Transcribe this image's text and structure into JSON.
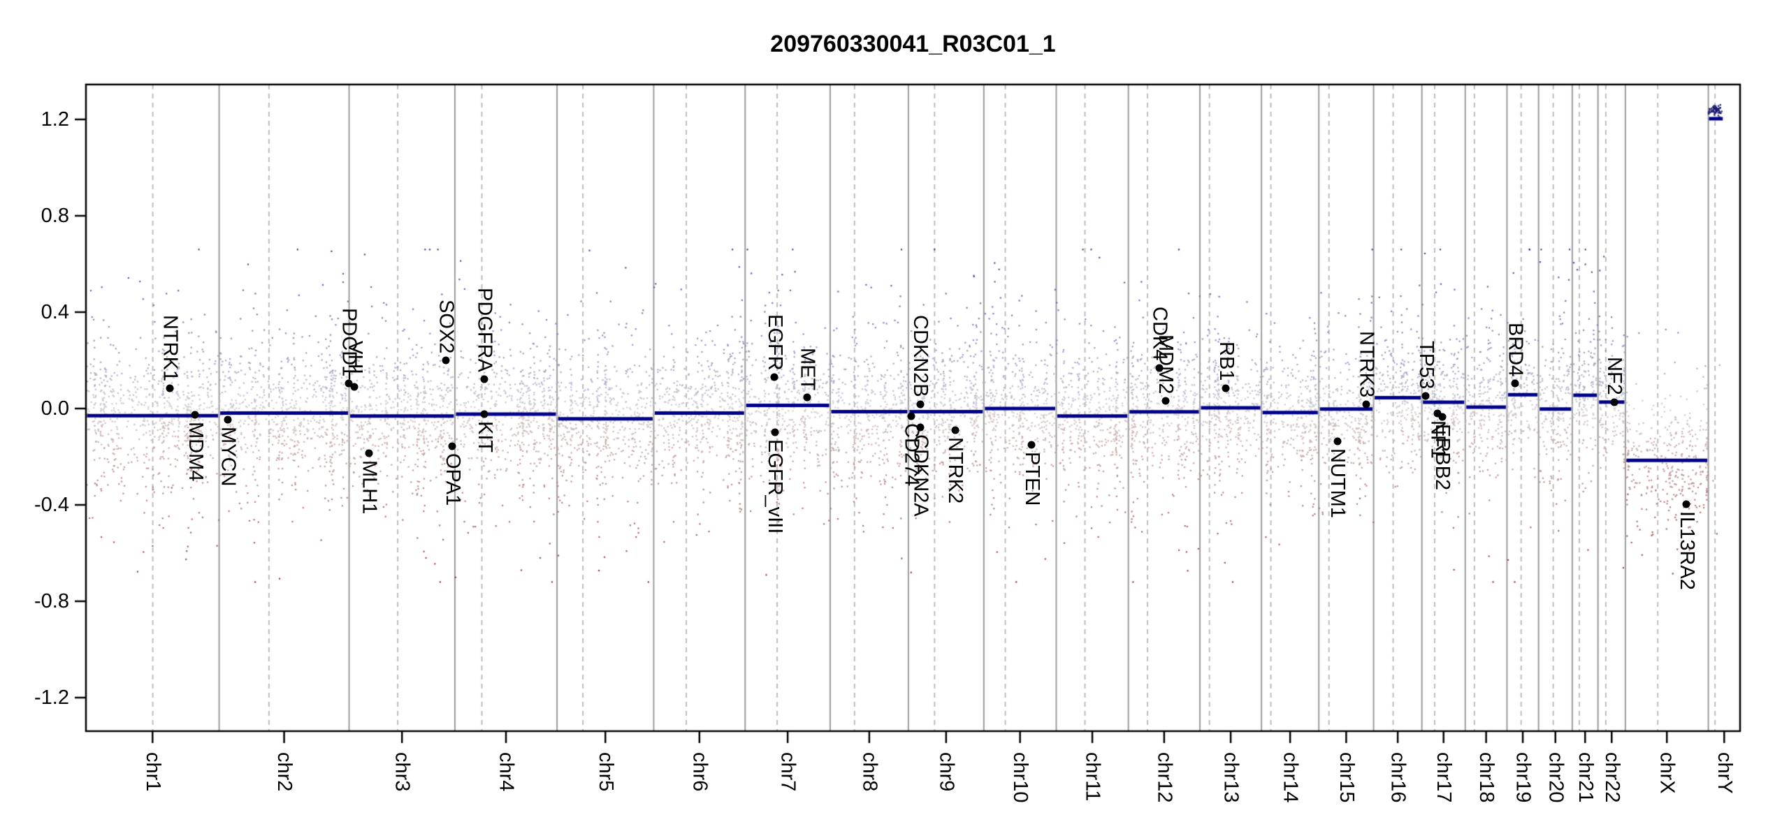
{
  "title": "209760330041_R03C01_1",
  "chart_data": {
    "type": "scatter",
    "title": "209760330041_R03C01_1",
    "xlabel": "",
    "ylabel": "",
    "ylim": [
      -1.34,
      1.34
    ],
    "ytick_values": [
      1.2,
      0.8,
      0.4,
      0.0,
      -0.4,
      -0.8,
      -1.2
    ],
    "ytick_labels": [
      "1.2",
      "0.8",
      "0.4",
      "0.0",
      "-0.4",
      "-0.8",
      "-1.2"
    ],
    "grid": "off",
    "legend": "none",
    "colors": {
      "segment": "#00008b",
      "chrom_boundary": "#9c9c9c",
      "centromere_dash": "#bdbdbd",
      "gene_marker": "#000000",
      "point_low_pos": "#cacad4",
      "point_high_pos": "#14146e",
      "point_low_neg": "#d4caca",
      "point_high_neg": "#781e1e",
      "box": "#000000"
    },
    "chromosomes": [
      {
        "name": "chr1",
        "length_mb": 249.25,
        "centromere_mb": 125.0,
        "segment_value": -0.03
      },
      {
        "name": "chr2",
        "length_mb": 243.2,
        "centromere_mb": 93.3,
        "segment_value": -0.019
      },
      {
        "name": "chr3",
        "length_mb": 198.02,
        "centromere_mb": 91.0,
        "segment_value": -0.031
      },
      {
        "name": "chr4",
        "length_mb": 191.15,
        "centromere_mb": 50.4,
        "segment_value": -0.023
      },
      {
        "name": "chr5",
        "length_mb": 180.92,
        "centromere_mb": 48.4,
        "segment_value": -0.043
      },
      {
        "name": "chr6",
        "length_mb": 171.12,
        "centromere_mb": 61.0,
        "segment_value": -0.019
      },
      {
        "name": "chr7",
        "length_mb": 159.14,
        "centromere_mb": 59.9,
        "segment_value": 0.013
      },
      {
        "name": "chr8",
        "length_mb": 146.36,
        "centromere_mb": 45.6,
        "segment_value": -0.013
      },
      {
        "name": "chr9",
        "length_mb": 141.21,
        "centromere_mb": 49.0,
        "segment_value": -0.013
      },
      {
        "name": "chr10",
        "length_mb": 135.53,
        "centromere_mb": 40.2,
        "segment_value": 0.0
      },
      {
        "name": "chr11",
        "length_mb": 135.01,
        "centromere_mb": 53.7,
        "segment_value": -0.031
      },
      {
        "name": "chr12",
        "length_mb": 133.85,
        "centromere_mb": 35.8,
        "segment_value": -0.014
      },
      {
        "name": "chr13",
        "length_mb": 115.17,
        "centromere_mb": 17.9,
        "segment_value": 0.003
      },
      {
        "name": "chr14",
        "length_mb": 107.35,
        "centromere_mb": 17.6,
        "segment_value": -0.017
      },
      {
        "name": "chr15",
        "length_mb": 102.53,
        "centromere_mb": 19.0,
        "segment_value": -0.002
      },
      {
        "name": "chr16",
        "length_mb": 90.35,
        "centromere_mb": 36.6,
        "segment_value": 0.045
      },
      {
        "name": "chr17",
        "length_mb": 81.2,
        "centromere_mb": 24.0,
        "segment_value": 0.026
      },
      {
        "name": "chr18",
        "length_mb": 78.08,
        "centromere_mb": 17.2,
        "segment_value": 0.006
      },
      {
        "name": "chr19",
        "length_mb": 59.13,
        "centromere_mb": 26.5,
        "segment_value": 0.057
      },
      {
        "name": "chr20",
        "length_mb": 63.03,
        "centromere_mb": 27.5,
        "segment_value": -0.002
      },
      {
        "name": "chr21",
        "length_mb": 48.13,
        "centromere_mb": 13.2,
        "segment_value": 0.055
      },
      {
        "name": "chr22",
        "length_mb": 51.3,
        "centromere_mb": 14.7,
        "segment_value": 0.027
      },
      {
        "name": "chrX",
        "length_mb": 155.27,
        "centromere_mb": 60.6,
        "segment_value": -0.215,
        "density": 2.3
      },
      {
        "name": "chrY",
        "length_mb": 59.37,
        "centromere_mb": 12.5,
        "segment_value": null,
        "density": 0.0
      }
    ],
    "partial_segments": [
      {
        "chrom": "chrY",
        "start_mb": 1.0,
        "end_mb": 27.0,
        "value": 1.203
      }
    ],
    "point_clusters": [
      {
        "chrom": "chrY",
        "start_mb": 0.5,
        "end_mb": 25.0,
        "value": 1.24,
        "sd": 0.01,
        "n": 55
      }
    ],
    "extra_points": [
      {
        "chrom": "chrY",
        "pos_mb": 9.0,
        "value": -0.3
      },
      {
        "chrom": "chrY",
        "pos_mb": 16.0,
        "value": -0.52
      },
      {
        "chrom": "chrY",
        "pos_mb": 21.0,
        "value": 0.18
      }
    ],
    "genes": [
      {
        "name": "NTRK1",
        "chrom": "chr1",
        "pos_mb": 156.8,
        "value": 0.084,
        "side": "above"
      },
      {
        "name": "MDM4",
        "chrom": "chr1",
        "pos_mb": 204.5,
        "value": -0.027,
        "side": "below"
      },
      {
        "name": "MYCN",
        "chrom": "chr2",
        "pos_mb": 16.1,
        "value": -0.046,
        "side": "below"
      },
      {
        "name": "PDCD1",
        "chrom": "chr2",
        "pos_mb": 242.8,
        "value": 0.104,
        "side": "above"
      },
      {
        "name": "VHL",
        "chrom": "chr3",
        "pos_mb": 10.2,
        "value": 0.09,
        "side": "above"
      },
      {
        "name": "MLH1",
        "chrom": "chr3",
        "pos_mb": 37.0,
        "value": -0.186,
        "side": "below"
      },
      {
        "name": "SOX2",
        "chrom": "chr3",
        "pos_mb": 181.4,
        "value": 0.2,
        "side": "above"
      },
      {
        "name": "OPA1",
        "chrom": "chr3",
        "pos_mb": 193.3,
        "value": -0.157,
        "side": "below"
      },
      {
        "name": "PDGFRA",
        "chrom": "chr4",
        "pos_mb": 55.1,
        "value": 0.122,
        "side": "above"
      },
      {
        "name": "KIT",
        "chrom": "chr4",
        "pos_mb": 55.6,
        "value": -0.023,
        "side": "below"
      },
      {
        "name": "EGFR",
        "chrom": "chr7",
        "pos_mb": 55.1,
        "value": 0.13,
        "side": "above"
      },
      {
        "name": "EGFR_vIII",
        "chrom": "chr7",
        "pos_mb": 55.3,
        "value": -0.099,
        "side": "below"
      },
      {
        "name": "MET",
        "chrom": "chr7",
        "pos_mb": 116.3,
        "value": 0.046,
        "side": "above"
      },
      {
        "name": "CD274",
        "chrom": "chr9",
        "pos_mb": 5.4,
        "value": -0.031,
        "side": "below"
      },
      {
        "name": "CDKN2B",
        "chrom": "chr9",
        "pos_mb": 22.0,
        "value": 0.017,
        "side": "above"
      },
      {
        "name": "CDKN2A",
        "chrom": "chr9",
        "pos_mb": 22.1,
        "value": -0.078,
        "side": "below"
      },
      {
        "name": "NTRK2",
        "chrom": "chr9",
        "pos_mb": 87.3,
        "value": -0.09,
        "side": "below"
      },
      {
        "name": "PTEN",
        "chrom": "chr10",
        "pos_mb": 89.6,
        "value": -0.15,
        "side": "below"
      },
      {
        "name": "CDK4",
        "chrom": "chr12",
        "pos_mb": 58.1,
        "value": 0.169,
        "side": "above"
      },
      {
        "name": "MDM2",
        "chrom": "chr12",
        "pos_mb": 69.2,
        "value": 0.032,
        "side": "above"
      },
      {
        "name": "RB1",
        "chrom": "chr13",
        "pos_mb": 48.9,
        "value": 0.085,
        "side": "above"
      },
      {
        "name": "NUTM1",
        "chrom": "chr15",
        "pos_mb": 34.6,
        "value": -0.137,
        "side": "below"
      },
      {
        "name": "NTRK3",
        "chrom": "chr15",
        "pos_mb": 88.4,
        "value": 0.017,
        "side": "above"
      },
      {
        "name": "TP53",
        "chrom": "chr17",
        "pos_mb": 7.6,
        "value": 0.052,
        "side": "above"
      },
      {
        "name": "NF1",
        "chrom": "chr17",
        "pos_mb": 29.5,
        "value": -0.019,
        "side": "below"
      },
      {
        "name": "ERBB2",
        "chrom": "chr17",
        "pos_mb": 37.8,
        "value": -0.036,
        "side": "below"
      },
      {
        "name": "BRD4",
        "chrom": "chr19",
        "pos_mb": 15.4,
        "value": 0.104,
        "side": "above"
      },
      {
        "name": "NF2",
        "chrom": "chr22",
        "pos_mb": 30.0,
        "value": 0.027,
        "side": "above"
      },
      {
        "name": "IL13RA2",
        "chrom": "chrX",
        "pos_mb": 114.3,
        "value": -0.396,
        "side": "below"
      }
    ],
    "noise": {
      "points_per_mb": 3.0,
      "sd_mix": [
        [
          0.62,
          0.115
        ],
        [
          0.3,
          0.21
        ],
        [
          0.08,
          0.33
        ]
      ],
      "clip": [
        -0.72,
        0.66
      ],
      "stripe_fraction": 0.3,
      "stripe_sd_mb": 1.2,
      "seed": 987123
    }
  }
}
